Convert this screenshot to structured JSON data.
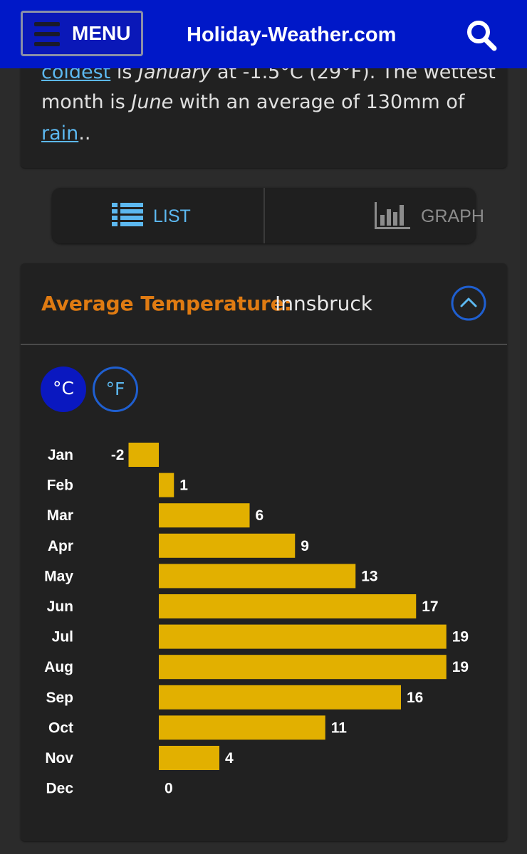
{
  "header": {
    "menu_label": "MENU",
    "site_title": "Holiday-Weather.com",
    "icons": {
      "menu": "hamburger-icon",
      "search": "search-icon"
    },
    "colors": {
      "bar": "#0018c8"
    }
  },
  "intro": {
    "line1": {
      "link": "coldest",
      "text1": " is ",
      "em": "January",
      "text2": " at -1.5°C (29°F). The wettest"
    },
    "line2": {
      "text1": "month is ",
      "em": "June",
      "text2": " with an average of 130mm of"
    },
    "line3": {
      "link": "rain",
      "text": ".."
    }
  },
  "view_toggle": {
    "list_label": "LIST",
    "graph_label": "GRAPH",
    "selected": "LIST",
    "icons": {
      "list": "list-icon",
      "graph": "bar-graph-icon"
    }
  },
  "temperature_card": {
    "title_key": "Average Temperature:",
    "title_value": "Innsbruck",
    "collapse_icon": "chevron-up-icon",
    "units": {
      "celsius": "°C",
      "fahrenheit": "°F",
      "selected": "°C"
    }
  },
  "chart_data": {
    "type": "bar",
    "orientation": "horizontal",
    "categories": [
      "Jan",
      "Feb",
      "Mar",
      "Apr",
      "May",
      "Jun",
      "Jul",
      "Aug",
      "Sep",
      "Oct",
      "Nov",
      "Dec"
    ],
    "values": [
      -2,
      1,
      6,
      9,
      13,
      17,
      19,
      19,
      16,
      11,
      4,
      0
    ],
    "value_labels": [
      "-2",
      "1",
      "6",
      "9",
      "13",
      "17",
      "19",
      "19",
      "16",
      "11",
      "4",
      "0"
    ],
    "bar_color": "#e2b000",
    "grid": false
  }
}
